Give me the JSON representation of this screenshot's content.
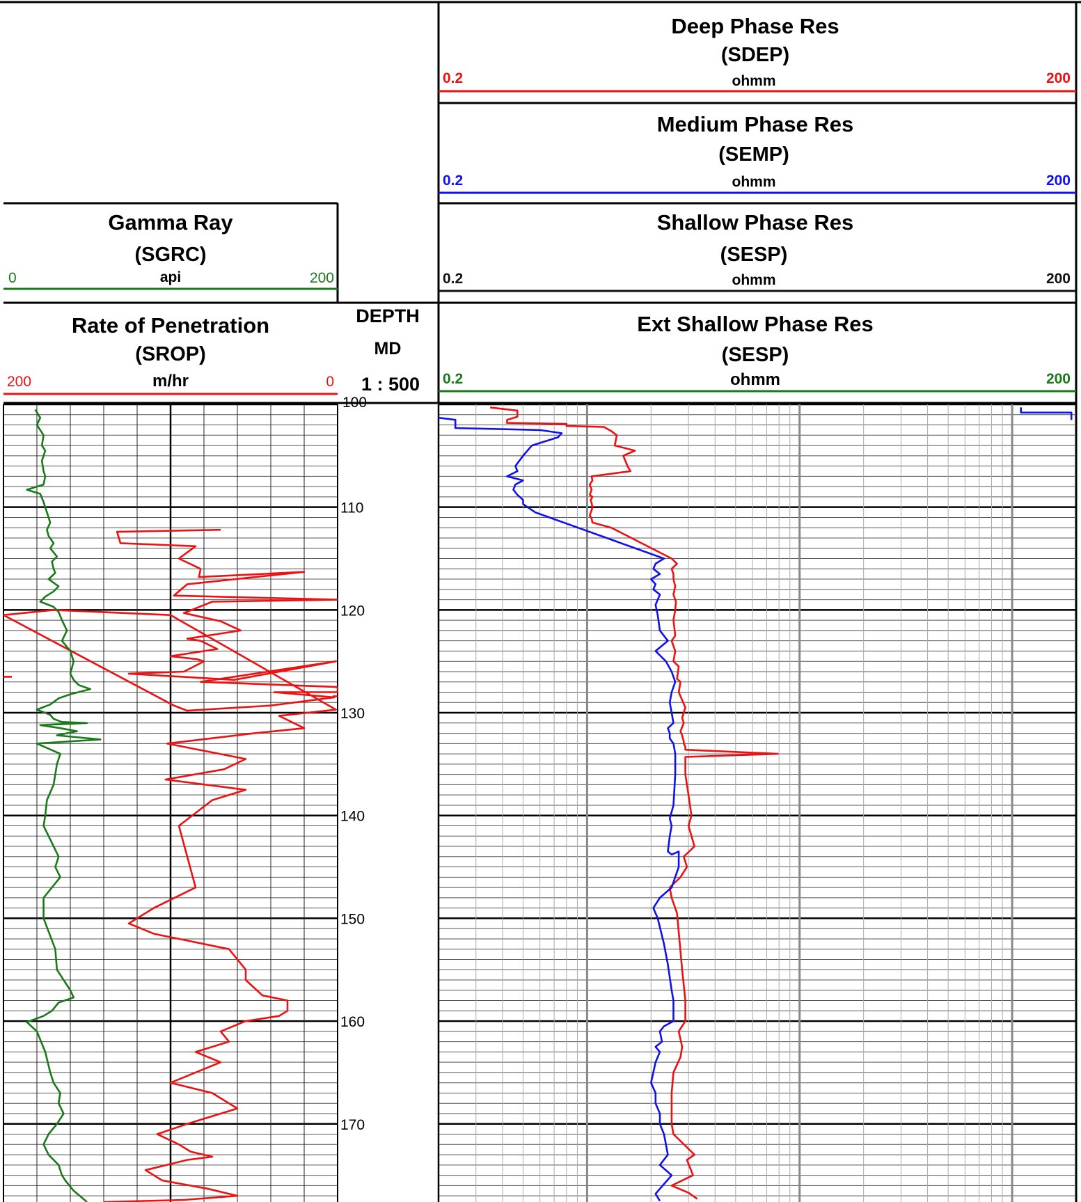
{
  "chart_data": {
    "type": "line",
    "depth_track": {
      "title": "DEPTH",
      "reference": "MD",
      "scale": "1 : 500",
      "ylim": [
        100,
        177.6
      ],
      "ticks": [
        "110",
        "120",
        "130",
        "140",
        "150",
        "160",
        "170"
      ]
    },
    "gamma_ray": {
      "title": "Gamma Ray",
      "mnemonic": "(SGRC)",
      "unit": "api",
      "scale_left": "0",
      "scale_right": "200",
      "xlim": [
        0,
        200
      ],
      "color": "#1a7a1a",
      "series": [
        {
          "name": "SGRC",
          "x": [
            19,
            22,
            20,
            24,
            23,
            25,
            23,
            24,
            25,
            24,
            14,
            22,
            24,
            26,
            28,
            26,
            27,
            30,
            28,
            32,
            29,
            30,
            31,
            27,
            33,
            30,
            25,
            22,
            30,
            33,
            35,
            38,
            35,
            40,
            42,
            40,
            42,
            45,
            52,
            40,
            33,
            28,
            20,
            28,
            30,
            35,
            50,
            22,
            34,
            44,
            32,
            58,
            20,
            34,
            32,
            30,
            26,
            25,
            24,
            27,
            30,
            33,
            31,
            34,
            29,
            24,
            24,
            31,
            32,
            36,
            40,
            42,
            33,
            29,
            24,
            14,
            20,
            25,
            28,
            30,
            34,
            33,
            36,
            32,
            27,
            24,
            27,
            33,
            35,
            37,
            42,
            50
          ],
          "y": [
            100.5,
            101.3,
            102,
            103,
            104,
            104.5,
            105.5,
            106.5,
            107,
            107.8,
            108.3,
            108.7,
            109.5,
            110.5,
            111.5,
            112.2,
            112.8,
            113.5,
            114,
            114.8,
            115.3,
            116,
            116.4,
            117,
            117.7,
            118.2,
            118.7,
            119.2,
            119.7,
            120.2,
            121,
            122,
            123,
            124,
            125,
            126.2,
            126.8,
            127.3,
            127.7,
            128.2,
            128.6,
            129.2,
            129.7,
            130.2,
            130.6,
            130.9,
            131,
            131.2,
            131.5,
            131.8,
            132.2,
            132.6,
            133,
            134,
            135,
            137,
            138.5,
            140,
            141,
            142,
            143,
            144,
            145,
            146,
            147,
            148,
            150,
            153,
            155,
            156,
            157,
            157.7,
            158.2,
            159,
            159.5,
            160.1,
            161,
            163,
            165,
            166,
            167,
            168,
            169,
            170,
            171,
            172,
            173,
            174,
            175,
            175.5,
            176.5,
            177.6
          ]
        }
      ]
    },
    "rop": {
      "title": "Rate of Penetration",
      "mnemonic": "(SROP)",
      "unit": "m/hr",
      "scale_left": "200",
      "scale_right": "0",
      "xlim": [
        200,
        0
      ],
      "color": "#ee1111",
      "series": [
        {
          "name": "SROP",
          "x": [
            70,
            132,
            130,
            85,
            95,
            82,
            83,
            20,
            90,
            98,
            0,
            75,
            92,
            70,
            58,
            90,
            82,
            72,
            100,
            84,
            80,
            92,
            125,
            62,
            1,
            82,
            0,
            0,
            38,
            2,
            40,
            90,
            98,
            200,
            170,
            100,
            1,
            35,
            20,
            50,
            102,
            55,
            68,
            103,
            55,
            75,
            95,
            90,
            85,
            110,
            125,
            110,
            65,
            55,
            55,
            45,
            30,
            30,
            35,
            55,
            70,
            65,
            85,
            70,
            100,
            75,
            60,
            90,
            108,
            95,
            88,
            75,
            90,
            115,
            105,
            78,
            60,
            92,
            140
          ],
          "y": [
            112.2,
            112.4,
            113.5,
            113.8,
            115,
            116,
            116.8,
            116.3,
            117.5,
            118.6,
            119,
            119.2,
            120.3,
            121.1,
            122,
            122.8,
            123,
            123.8,
            124.5,
            124.8,
            125,
            126,
            126.2,
            126.8,
            125,
            127,
            127.5,
            128,
            128,
            128.5,
            129.3,
            129.8,
            129.3,
            120.5,
            120,
            120.5,
            129.7,
            130.3,
            131.5,
            132,
            133,
            134.5,
            135.5,
            136.5,
            137.5,
            138.5,
            141,
            144,
            147,
            149,
            150.5,
            151.5,
            153,
            155,
            156,
            157.5,
            158,
            159,
            159.5,
            160,
            161,
            162,
            163,
            164,
            166,
            167,
            168.5,
            170,
            171,
            172,
            172.7,
            173.2,
            173.5,
            174.5,
            175.5,
            176.3,
            177,
            177.4,
            177.6
          ]
        },
        {
          "name": "SROP-b",
          "x": [
            200,
            195
          ],
          "y": [
            126.5,
            126.5
          ]
        },
        {
          "name": "SROP-c",
          "x": [
            3,
            0
          ],
          "y": [
            128.4,
            128.4
          ]
        }
      ]
    },
    "resistivity": {
      "xlim": [
        0.2,
        200
      ],
      "log_scale": true,
      "curves": [
        {
          "title": "Deep Phase Res",
          "mnemonic": "(SDEP)",
          "unit": "ohmm",
          "scale_left": "0.2",
          "scale_right": "200",
          "color": "#ee1111"
        },
        {
          "title": "Medium Phase Res",
          "mnemonic": "(SEMP)",
          "unit": "ohmm",
          "scale_left": "0.2",
          "scale_right": "200",
          "color": "#1111ee"
        },
        {
          "title": "Shallow Phase Res",
          "mnemonic": "(SESP)",
          "unit": "ohmm",
          "scale_left": "0.2",
          "scale_right": "200",
          "color": "#111111"
        },
        {
          "title": "Ext Shallow Phase Res",
          "mnemonic": "(SESP)",
          "unit": "ohmm",
          "scale_left": "0.2",
          "scale_right": "200",
          "color": "#1a7a1a"
        }
      ],
      "series": [
        {
          "name": "SDEP",
          "color": "#ee1111",
          "x": [
            0.35,
            0.47,
            0.47,
            0.42,
            0.42,
            0.8,
            0.8,
            1.2,
            1.3,
            1.38,
            1.35,
            1.68,
            1.48,
            1.55,
            1.6,
            1.05,
            1.06,
            1.03,
            1.05,
            1.03,
            1.06,
            1.04,
            1.05,
            1.06,
            1.05,
            1.03,
            1.05,
            1.06,
            1.3,
            2.5,
            2.65,
            2.5,
            2.55,
            2.55,
            2.6,
            2.55,
            2.62,
            2.6,
            2.55,
            2.6,
            2.5,
            2.6,
            2.55,
            2.7,
            2.65,
            2.75,
            2.7,
            2.9,
            2.8,
            2.85,
            2.75,
            2.8,
            2.85,
            2.85,
            2.9,
            2.9,
            7.9,
            2.9,
            2.9,
            3.0,
            3.1,
            3.0,
            3.2,
            2.85,
            2.95,
            2.75,
            2.45,
            2.5,
            2.65,
            2.8,
            2.9,
            2.9,
            2.7,
            2.8,
            2.75,
            2.55,
            2.5,
            2.5,
            2.55,
            3.2,
            2.95,
            3.15,
            2.5,
            3.0,
            3.3
          ],
          "y": [
            100.3,
            100.6,
            101.2,
            101.5,
            101.8,
            101.9,
            102.1,
            102.2,
            102.6,
            103,
            104,
            104.5,
            105,
            106,
            106.5,
            107,
            107.4,
            107.8,
            108.3,
            108.8,
            109,
            109.3,
            109.6,
            110,
            110.3,
            110.8,
            111.1,
            111.5,
            112,
            115,
            115.5,
            116,
            116.5,
            117,
            117.7,
            118.5,
            119.2,
            120,
            121,
            122.5,
            123,
            124,
            125,
            125.5,
            126.7,
            127,
            128,
            129.5,
            130.5,
            131,
            131.8,
            132.2,
            132.8,
            133,
            133.3,
            133.6,
            134,
            134.3,
            136,
            138,
            140,
            141,
            143,
            144,
            145,
            146,
            147,
            148,
            149.5,
            155,
            158,
            160,
            161,
            162.5,
            163.5,
            165,
            167,
            170,
            171,
            173,
            173.5,
            175,
            176,
            176.7,
            177.3
          ]
        },
        {
          "name": "SEMP",
          "color": "#1111ee",
          "x": [
            0.2,
            0.24,
            0.24,
            0.6,
            0.76,
            0.73,
            0.55,
            0.5,
            0.46,
            0.47,
            0.42,
            0.5,
            0.46,
            0.45,
            0.47,
            0.5,
            0.5,
            0.57,
            2.3,
            2.1,
            2.05,
            2.2,
            2.0,
            2.1,
            2.05,
            2.2,
            2.1,
            2.15,
            2.2,
            2.4,
            2.1,
            2.35,
            2.5,
            2.6,
            2.5,
            2.45,
            2.5,
            2.55,
            2.4,
            2.45,
            2.45,
            2.55,
            2.6,
            2.6,
            2.55,
            2.45,
            2.5,
            2.45,
            2.4,
            2.5,
            2.7,
            2.7,
            2.5,
            2.2,
            2.05,
            2.15,
            2.3,
            2.4,
            2.5,
            2.55,
            2.55,
            2.3,
            2.2,
            2.25,
            2.1,
            2.2,
            2.1,
            2.0,
            2.1,
            2.1,
            2.2,
            2.2,
            2.3,
            2.4,
            2.2,
            2.5,
            2.1,
            2.2
          ],
          "y": [
            101.3,
            101.5,
            102.3,
            102.5,
            102.8,
            103.2,
            104,
            105,
            106,
            106.5,
            107,
            107.4,
            107.8,
            108.3,
            108.8,
            109.3,
            109.7,
            110.5,
            115,
            115.5,
            116,
            116.5,
            117,
            117.5,
            118,
            118.5,
            119.5,
            120.5,
            122,
            123,
            124,
            125,
            126,
            127,
            128,
            129,
            130,
            131,
            131.5,
            132,
            132.5,
            133,
            134,
            136,
            139,
            140.3,
            141,
            142,
            143.5,
            143.8,
            143.5,
            145,
            147,
            148,
            149,
            150,
            152.5,
            154.5,
            157,
            158,
            160,
            160.5,
            161,
            162,
            162.5,
            163,
            164,
            166,
            167,
            168,
            169,
            170,
            171,
            173,
            174,
            175,
            176.8,
            177.5
          ]
        },
        {
          "name": "SDEP-top",
          "color": "#1111ee",
          "x": [
            110,
            110,
            190,
            190
          ],
          "y": [
            100.3,
            100.8,
            100.8,
            101.5
          ]
        }
      ]
    }
  }
}
